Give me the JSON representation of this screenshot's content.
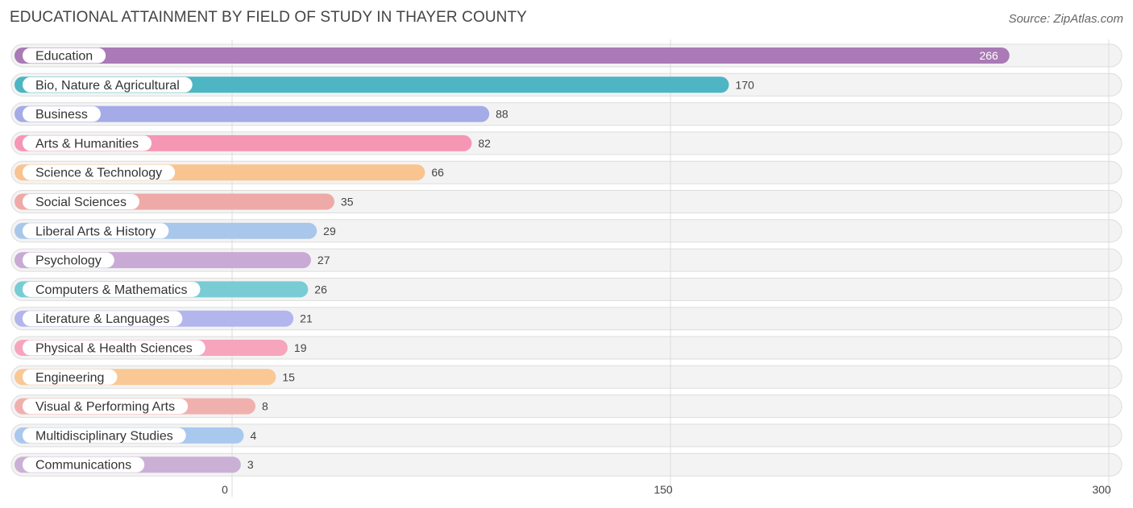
{
  "title": "EDUCATIONAL ATTAINMENT BY FIELD OF STUDY IN THAYER COUNTY",
  "source": "Source: ZipAtlas.com",
  "chart_data": {
    "type": "bar",
    "orientation": "horizontal",
    "title": "EDUCATIONAL ATTAINMENT BY FIELD OF STUDY IN THAYER COUNTY",
    "xlabel": "",
    "ylabel": "",
    "xlim": [
      0,
      300
    ],
    "ticks": [
      0,
      150,
      300
    ],
    "tick_labels": [
      "0",
      "150",
      "300"
    ],
    "grid": true,
    "categories": [
      "Education",
      "Bio, Nature & Agricultural",
      "Business",
      "Arts & Humanities",
      "Science & Technology",
      "Social Sciences",
      "Liberal Arts & History",
      "Psychology",
      "Computers & Mathematics",
      "Literature & Languages",
      "Physical & Health Sciences",
      "Engineering",
      "Visual & Performing Arts",
      "Multidisciplinary Studies",
      "Communications"
    ],
    "values": [
      266,
      170,
      88,
      82,
      66,
      35,
      29,
      27,
      26,
      21,
      19,
      15,
      8,
      4,
      3
    ],
    "colors": [
      "#a97ab5",
      "#4db5c3",
      "#a4abe6",
      "#f597b4",
      "#f9c48f",
      "#eeaaa7",
      "#a9c6eb",
      "#c9aad4",
      "#79ccd4",
      "#b2b6ec",
      "#f6a5bd",
      "#f9c895",
      "#f0b1ae",
      "#a9c8ee",
      "#cbb0d6"
    ]
  }
}
